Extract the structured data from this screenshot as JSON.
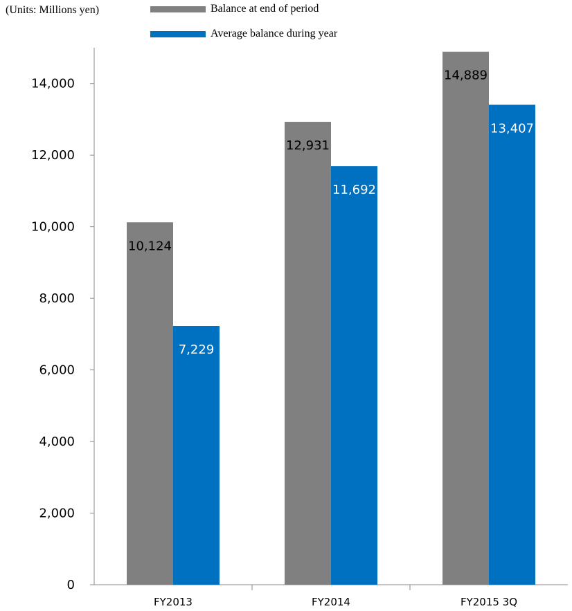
{
  "units_note": "(Units: Millions yen)",
  "chart_data": {
    "type": "bar",
    "categories": [
      "FY2013",
      "FY2014",
      "FY2015 3Q"
    ],
    "series": [
      {
        "name": "Balance at end of period",
        "color": "#808080",
        "label_color": "#000000",
        "values": [
          10124,
          12931,
          14889
        ],
        "labels": [
          "10,124",
          "12,931",
          "14,889"
        ]
      },
      {
        "name": "Average balance during year",
        "color": "#0070C0",
        "label_color": "#ffffff",
        "values": [
          7229,
          11692,
          13407
        ],
        "labels": [
          "7,229",
          "11,692",
          "13,407"
        ]
      }
    ],
    "ylim": [
      0,
      15000
    ],
    "yticks": [
      0,
      2000,
      4000,
      6000,
      8000,
      10000,
      12000,
      14000
    ],
    "ytick_labels": [
      "0",
      "2,000",
      "4,000",
      "6,000",
      "8,000",
      "10,000",
      "12,000",
      "14,000"
    ],
    "grid": false,
    "legend_position": "top"
  }
}
